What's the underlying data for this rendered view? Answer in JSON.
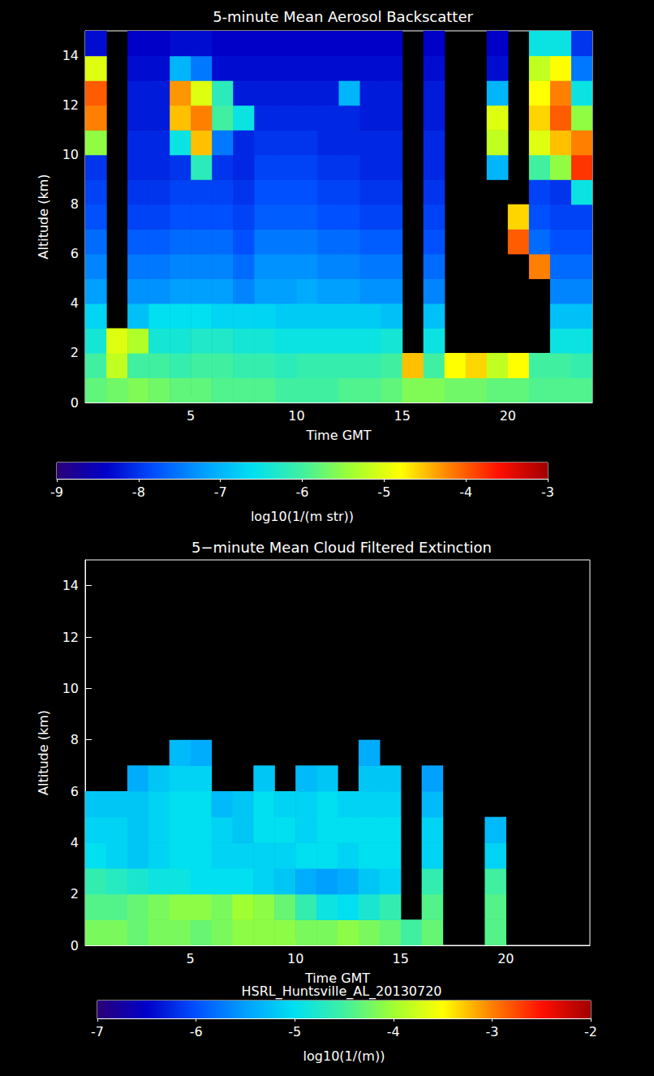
{
  "chart_data": [
    {
      "type": "heatmap",
      "title": "5-minute Mean Aerosol Backscatter",
      "x_label": "Time GMT",
      "y_label": "Altitude (km)",
      "xlim": [
        0,
        24
      ],
      "xticks": [
        5,
        10,
        15,
        20
      ],
      "ylim": [
        0,
        15
      ],
      "yticks": [
        0,
        2,
        4,
        6,
        8,
        10,
        12,
        14
      ],
      "time_edges": [
        0,
        1,
        2,
        3,
        4,
        5,
        6,
        7,
        8,
        9,
        10,
        11,
        12,
        13,
        14,
        15,
        16,
        17,
        18,
        19,
        20,
        21,
        22,
        23,
        24
      ],
      "altitude_edges": [
        0,
        1,
        2,
        3,
        4,
        5,
        6,
        7,
        8,
        9,
        10,
        11,
        12,
        13,
        14,
        15
      ],
      "cells": [
        [
          -5.8,
          -5.7,
          -5.6,
          -5.7,
          -5.8,
          -5.8,
          -5.9,
          -5.9,
          -5.9,
          -6.0,
          -6.0,
          -6.0,
          -5.9,
          -5.9,
          -5.8,
          -5.6,
          -5.6,
          -5.7,
          -5.7,
          -5.8,
          -5.8,
          -5.9,
          -5.9,
          -5.9
        ],
        [
          -6.0,
          -5.2,
          -6.0,
          -6.0,
          -6.1,
          -6.0,
          -6.0,
          -6.1,
          -6.1,
          -6.2,
          -6.1,
          -6.1,
          -6.1,
          -6.1,
          -6.0,
          -4.5,
          -6.0,
          -4.8,
          -4.6,
          -5.2,
          -4.8,
          -6.0,
          -6.0,
          -6.1
        ],
        [
          -6.4,
          -5.0,
          -5.3,
          -6.4,
          -6.4,
          -6.3,
          -6.3,
          -6.4,
          -6.4,
          -6.5,
          -6.5,
          -6.5,
          -6.5,
          -6.5,
          -6.4,
          null,
          -6.5,
          null,
          null,
          null,
          null,
          null,
          -6.5,
          -6.5
        ],
        [
          -6.7,
          null,
          -6.9,
          -6.6,
          -6.6,
          -6.6,
          -6.7,
          -6.7,
          -6.7,
          -6.8,
          -6.8,
          -6.8,
          -6.8,
          -6.8,
          -6.9,
          null,
          -6.9,
          null,
          null,
          null,
          null,
          null,
          -6.9,
          -6.9
        ],
        [
          -7.2,
          null,
          -7.3,
          -7.3,
          -7.2,
          -7.2,
          -7.2,
          -7.4,
          -7.2,
          -7.2,
          -7.1,
          -7.2,
          -7.2,
          -7.3,
          -7.3,
          null,
          -7.4,
          null,
          null,
          null,
          null,
          null,
          -7.4,
          -7.4
        ],
        [
          -7.4,
          null,
          -7.5,
          -7.5,
          -7.4,
          -7.4,
          -7.4,
          -7.6,
          -7.3,
          -7.3,
          -7.3,
          -7.4,
          -7.4,
          -7.5,
          -7.5,
          null,
          -7.6,
          null,
          null,
          null,
          null,
          -4.2,
          -7.6,
          -7.6
        ],
        [
          -7.6,
          null,
          -7.7,
          -7.7,
          -7.6,
          -7.6,
          -7.6,
          -7.8,
          -7.5,
          -7.5,
          -7.5,
          -7.6,
          -7.6,
          -7.7,
          -7.7,
          null,
          -7.8,
          null,
          null,
          null,
          -4.0,
          -7.6,
          -7.8,
          -7.8
        ],
        [
          -7.8,
          null,
          -7.9,
          -7.9,
          -7.8,
          -7.8,
          -7.8,
          -7.9,
          -7.7,
          -7.7,
          -7.7,
          -7.8,
          -7.8,
          -7.9,
          -7.9,
          null,
          -7.9,
          null,
          null,
          null,
          -4.6,
          -7.8,
          -7.9,
          -7.9
        ],
        [
          -7.9,
          null,
          -8.0,
          -8.0,
          -7.9,
          -7.9,
          -7.9,
          -8.0,
          -7.8,
          -7.8,
          -7.8,
          -7.9,
          -7.9,
          -8.0,
          -8.0,
          null,
          -8.0,
          null,
          null,
          null,
          null,
          -7.9,
          -8.0,
          -6.5
        ],
        [
          -8.0,
          null,
          -8.1,
          -8.1,
          -8.0,
          -6.2,
          -8.0,
          -8.1,
          -7.9,
          -7.9,
          -7.9,
          -8.0,
          -8.0,
          -8.1,
          -8.1,
          null,
          -8.1,
          null,
          null,
          -7.0,
          null,
          -6.0,
          -5.5,
          -3.8
        ],
        [
          -5.5,
          null,
          -8.1,
          -8.1,
          -6.5,
          -4.5,
          -7.5,
          -8.1,
          -8.0,
          -8.0,
          -8.0,
          -8.1,
          -8.1,
          -8.1,
          -8.1,
          null,
          -8.1,
          null,
          null,
          -5.2,
          null,
          -5.0,
          -4.5,
          -4.2
        ],
        [
          -4.2,
          null,
          -8.2,
          -8.2,
          -4.5,
          -4.2,
          -6.0,
          -6.5,
          -8.1,
          -8.1,
          -8.1,
          -8.1,
          -8.1,
          -8.2,
          -8.2,
          null,
          -8.2,
          null,
          null,
          -5.0,
          null,
          -4.6,
          -4.0,
          -5.5
        ],
        [
          -4.0,
          null,
          -8.2,
          -8.2,
          -4.3,
          -5.0,
          -6.2,
          -8.2,
          -8.2,
          -8.2,
          -8.2,
          -8.2,
          -7.0,
          -8.2,
          -8.2,
          null,
          -8.2,
          null,
          null,
          -7.0,
          null,
          -4.8,
          -4.2,
          -6.5
        ],
        [
          -5.0,
          null,
          -8.3,
          -8.3,
          -7.0,
          -7.5,
          -8.3,
          -8.3,
          -8.3,
          -8.3,
          -8.3,
          -8.3,
          -8.3,
          -8.3,
          -8.3,
          null,
          -8.3,
          null,
          null,
          -8.3,
          null,
          -5.2,
          -4.8,
          -7.5
        ],
        [
          -8.3,
          null,
          -8.4,
          -8.4,
          -8.3,
          -8.3,
          -8.4,
          -8.4,
          -8.4,
          -8.4,
          -8.4,
          -8.4,
          -8.4,
          -8.4,
          -8.4,
          null,
          -8.4,
          null,
          null,
          -8.4,
          null,
          -6.5,
          -6.5,
          -8.0
        ]
      ],
      "colorbar": {
        "range": [
          -9,
          -3
        ],
        "ticks": [
          -9,
          -8,
          -7,
          -6,
          -5,
          -4,
          -3
        ],
        "label": "log10(1/(m str))"
      }
    },
    {
      "type": "heatmap",
      "title": "5−minute Mean Cloud Filtered Extinction",
      "x_label": "Time GMT",
      "y_label": "Altitude (km)",
      "caption": "HSRL_Huntsville_AL_20130720",
      "xlim": [
        0,
        24
      ],
      "xticks": [
        5,
        10,
        15,
        20
      ],
      "ylim": [
        0,
        15
      ],
      "yticks": [
        0,
        2,
        4,
        6,
        8,
        10,
        12,
        14
      ],
      "time_edges": [
        0,
        1,
        2,
        3,
        4,
        5,
        6,
        7,
        8,
        9,
        10,
        11,
        12,
        13,
        14,
        15,
        16,
        17,
        18,
        19,
        20,
        21,
        22,
        23,
        24
      ],
      "altitude_edges": [
        0,
        1,
        2,
        3,
        4,
        5,
        6,
        7,
        8,
        9,
        10,
        11,
        12,
        13,
        14,
        15
      ],
      "cells": [
        [
          -4.2,
          -4.2,
          -4.3,
          -4.2,
          -4.2,
          -4.3,
          -4.2,
          -4.1,
          -4.1,
          -4.1,
          -4.2,
          -4.2,
          -4.1,
          -4.2,
          -4.3,
          -4.5,
          -4.3,
          null,
          null,
          -4.4,
          null,
          null,
          null,
          null
        ],
        [
          -4.4,
          -4.4,
          -4.3,
          -4.2,
          -4.1,
          -4.1,
          -4.2,
          -4.0,
          -4.1,
          -4.3,
          -4.6,
          -4.9,
          -5.0,
          -4.8,
          -4.6,
          null,
          -4.4,
          null,
          null,
          -4.4,
          null,
          null,
          null,
          null
        ],
        [
          -4.6,
          -4.7,
          -4.8,
          -4.9,
          -4.9,
          -5.0,
          -5.0,
          -5.0,
          -5.1,
          -5.2,
          -5.4,
          -5.5,
          -5.4,
          -5.2,
          -5.1,
          null,
          -4.6,
          null,
          null,
          -4.5,
          null,
          null,
          null,
          null
        ],
        [
          -5.0,
          -5.1,
          -5.2,
          -5.1,
          -5.0,
          -5.0,
          -5.1,
          -5.1,
          -5.1,
          -5.1,
          -5.0,
          -5.0,
          -5.1,
          -5.0,
          -5.0,
          null,
          -5.1,
          null,
          null,
          -5.1,
          null,
          null,
          null,
          null
        ],
        [
          -5.1,
          -5.1,
          -5.2,
          -5.1,
          -5.0,
          -5.0,
          -5.1,
          -5.2,
          -5.0,
          -5.0,
          -5.1,
          -5.0,
          -5.0,
          -5.0,
          -5.0,
          null,
          -5.1,
          null,
          null,
          -5.3,
          null,
          null,
          null,
          null
        ],
        [
          -5.2,
          -5.2,
          -5.2,
          -5.1,
          -5.0,
          -5.0,
          -5.3,
          -5.2,
          -5.0,
          -5.1,
          -5.1,
          -5.0,
          -5.1,
          -5.1,
          -5.1,
          null,
          -5.3,
          null,
          null,
          null,
          null,
          null,
          null,
          null
        ],
        [
          null,
          null,
          -5.4,
          -5.2,
          -5.1,
          -5.1,
          null,
          null,
          -5.2,
          null,
          -5.3,
          -5.2,
          null,
          -5.2,
          -5.2,
          null,
          -5.5,
          null,
          null,
          null,
          null,
          null,
          null,
          null
        ],
        [
          null,
          null,
          null,
          null,
          -5.3,
          -5.4,
          null,
          null,
          null,
          null,
          null,
          null,
          null,
          -5.4,
          null,
          null,
          null,
          null,
          null,
          null,
          null,
          null,
          null,
          null
        ],
        [
          null,
          null,
          null,
          null,
          null,
          null,
          null,
          null,
          null,
          null,
          null,
          null,
          null,
          null,
          null,
          null,
          null,
          null,
          null,
          null,
          null,
          null,
          null,
          null
        ],
        [
          null,
          null,
          null,
          null,
          null,
          null,
          null,
          null,
          null,
          null,
          null,
          null,
          null,
          null,
          null,
          null,
          null,
          null,
          null,
          null,
          null,
          null,
          null,
          null
        ],
        [
          null,
          null,
          null,
          null,
          null,
          null,
          null,
          null,
          null,
          null,
          null,
          null,
          null,
          null,
          null,
          null,
          null,
          null,
          null,
          null,
          null,
          null,
          null,
          null
        ],
        [
          null,
          null,
          null,
          null,
          null,
          null,
          null,
          null,
          null,
          null,
          null,
          null,
          null,
          null,
          null,
          null,
          null,
          null,
          null,
          null,
          null,
          null,
          null,
          null
        ],
        [
          null,
          null,
          null,
          null,
          null,
          null,
          null,
          null,
          null,
          null,
          null,
          null,
          null,
          null,
          null,
          null,
          null,
          null,
          null,
          null,
          null,
          null,
          null,
          null
        ],
        [
          null,
          null,
          null,
          null,
          null,
          null,
          null,
          null,
          null,
          null,
          null,
          null,
          null,
          null,
          null,
          null,
          null,
          null,
          null,
          null,
          null,
          null,
          null,
          null
        ],
        [
          null,
          null,
          null,
          null,
          null,
          null,
          null,
          null,
          null,
          null,
          null,
          null,
          null,
          null,
          null,
          null,
          null,
          null,
          null,
          null,
          null,
          null,
          null,
          null
        ]
      ],
      "colorbar": {
        "range": [
          -7,
          -2
        ],
        "ticks": [
          -7,
          -6,
          -5,
          -4,
          -3,
          -2
        ],
        "label": "log10(1/(m))"
      }
    }
  ]
}
